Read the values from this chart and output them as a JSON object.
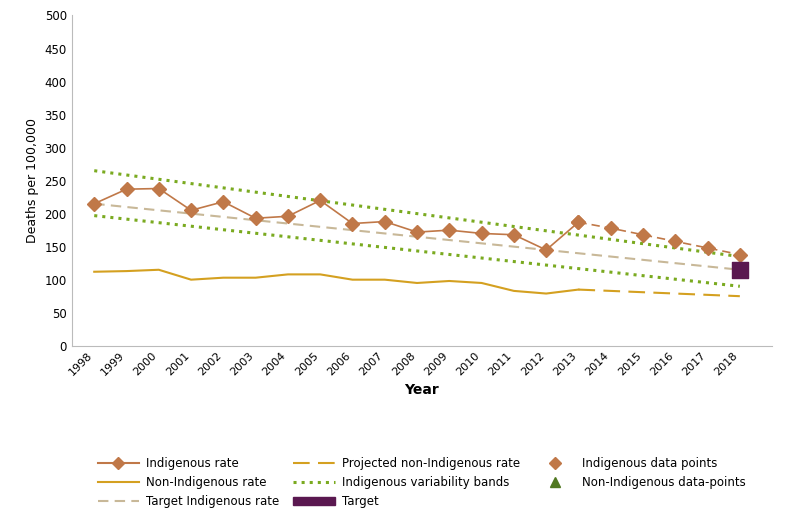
{
  "years_data": [
    1998,
    1999,
    2000,
    2001,
    2002,
    2003,
    2004,
    2005,
    2006,
    2007,
    2008,
    2009,
    2010,
    2011,
    2012,
    2013
  ],
  "indigenous_rate": [
    215,
    237,
    238,
    205,
    218,
    193,
    196,
    220,
    185,
    188,
    172,
    175,
    170,
    168,
    145,
    187
  ],
  "non_indigenous_rate": [
    112,
    113,
    115,
    100,
    103,
    103,
    108,
    108,
    100,
    100,
    95,
    98,
    95,
    83,
    79,
    85
  ],
  "indigenous_projected_years": [
    2013,
    2014,
    2015,
    2016,
    2017,
    2018
  ],
  "indigenous_projected_vals": [
    187,
    178,
    168,
    158,
    148,
    138
  ],
  "target_indigenous_years": [
    1998,
    2018
  ],
  "target_indigenous_vals": [
    215,
    115
  ],
  "projected_non_indig_years": [
    2013,
    2014,
    2015,
    2016,
    2017,
    2018
  ],
  "projected_non_indig_vals": [
    85,
    83,
    81,
    79,
    77,
    75
  ],
  "variability_upper_years": [
    1998,
    2018
  ],
  "variability_upper_vals": [
    265,
    135
  ],
  "variability_lower_years": [
    1998,
    2018
  ],
  "variability_lower_vals": [
    197,
    90
  ],
  "target_year": 2018,
  "target_val": 115,
  "indigenous_color": "#c07848",
  "non_indigenous_color": "#d4a020",
  "target_indig_color": "#c8b898",
  "projected_non_indig_color": "#d4a020",
  "variability_color": "#7aaa20",
  "target_marker_color": "#5a1850",
  "ylabel": "Deaths per 100,000",
  "xlabel": "Year",
  "ylim": [
    0,
    500
  ],
  "yticks": [
    0,
    50,
    100,
    150,
    200,
    250,
    300,
    350,
    400,
    450,
    500
  ],
  "xtick_years": [
    1998,
    1999,
    2000,
    2001,
    2002,
    2003,
    2004,
    2005,
    2006,
    2007,
    2008,
    2009,
    2010,
    2011,
    2012,
    2013,
    2014,
    2015,
    2016,
    2017,
    2018
  ],
  "legend_indigenous_rate": "Indigenous rate",
  "legend_non_indigenous_rate": "Non-Indigenous rate",
  "legend_target_indig": "Target Indigenous rate",
  "legend_projected_non_indig": "Projected non-Indigenous rate",
  "legend_variability": "Indigenous variability bands",
  "legend_target": "Target",
  "legend_indig_data": "Indigenous data points",
  "legend_non_indig_data": "Non-Indigenous data-points"
}
